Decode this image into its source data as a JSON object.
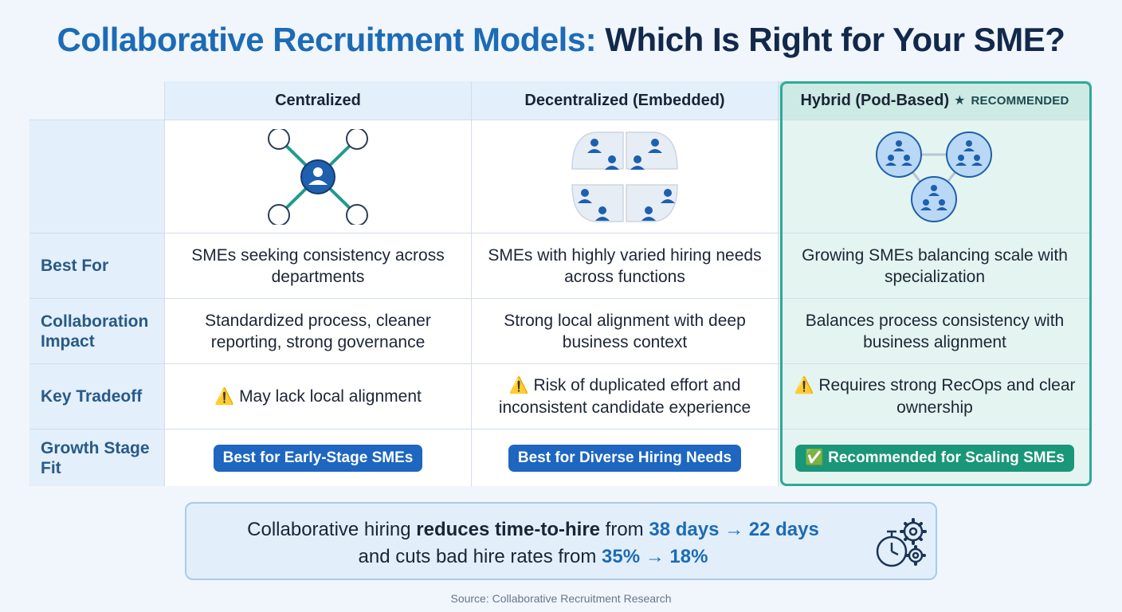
{
  "title": {
    "part1": "Collaborative Recruitment Models:",
    "part2": "Which Is Right for Your SME?"
  },
  "columns": [
    {
      "name": "Centralized",
      "icon": "hub-network-icon"
    },
    {
      "name": "Decentralized (Embedded)",
      "icon": "embedded-teams-icon"
    },
    {
      "name": "Hybrid (Pod-Based)",
      "tag": "RECOMMENDED",
      "icon": "pod-network-icon"
    }
  ],
  "rows": [
    {
      "label": "Best For",
      "values": [
        "SMEs seeking consistency across departments",
        "SMEs with highly varied hiring needs across functions",
        "Growing SMEs balancing scale with specialization"
      ]
    },
    {
      "label": "Collaboration Impact",
      "values": [
        "Standardized process, cleaner reporting, strong governance",
        "Strong local alignment with deep business context",
        "Balances process consistency with business alignment"
      ]
    },
    {
      "label": "Key Tradeoff",
      "warn": "⚠️",
      "values": [
        "May lack local alignment",
        "Risk of duplicated effort and inconsistent candidate experience",
        "Requires strong RecOps and clear ownership"
      ]
    },
    {
      "label": "Growth Stage Fit",
      "values": [
        "Best for Early-Stage SMEs",
        "Best for Diverse Hiring Needs",
        "✅ Recommended for Scaling SMEs"
      ]
    }
  ],
  "colors": {
    "accent_blue": "#1d6bb5",
    "accent_teal": "#2fa89a",
    "badge_blue": "#1e66bf",
    "badge_green": "#1a9678"
  },
  "note": {
    "line1_a": "Collaborative hiring ",
    "line1_b": "reduces time-to-hire",
    "line1_c": " from ",
    "line1_d": "38 days → 22 days",
    "line2_a": "and cuts bad hire rates from ",
    "line2_b": "35% → 18%",
    "icon": "stopwatch-gears-icon"
  },
  "source": "Source: Collaborative Recruitment Research"
}
